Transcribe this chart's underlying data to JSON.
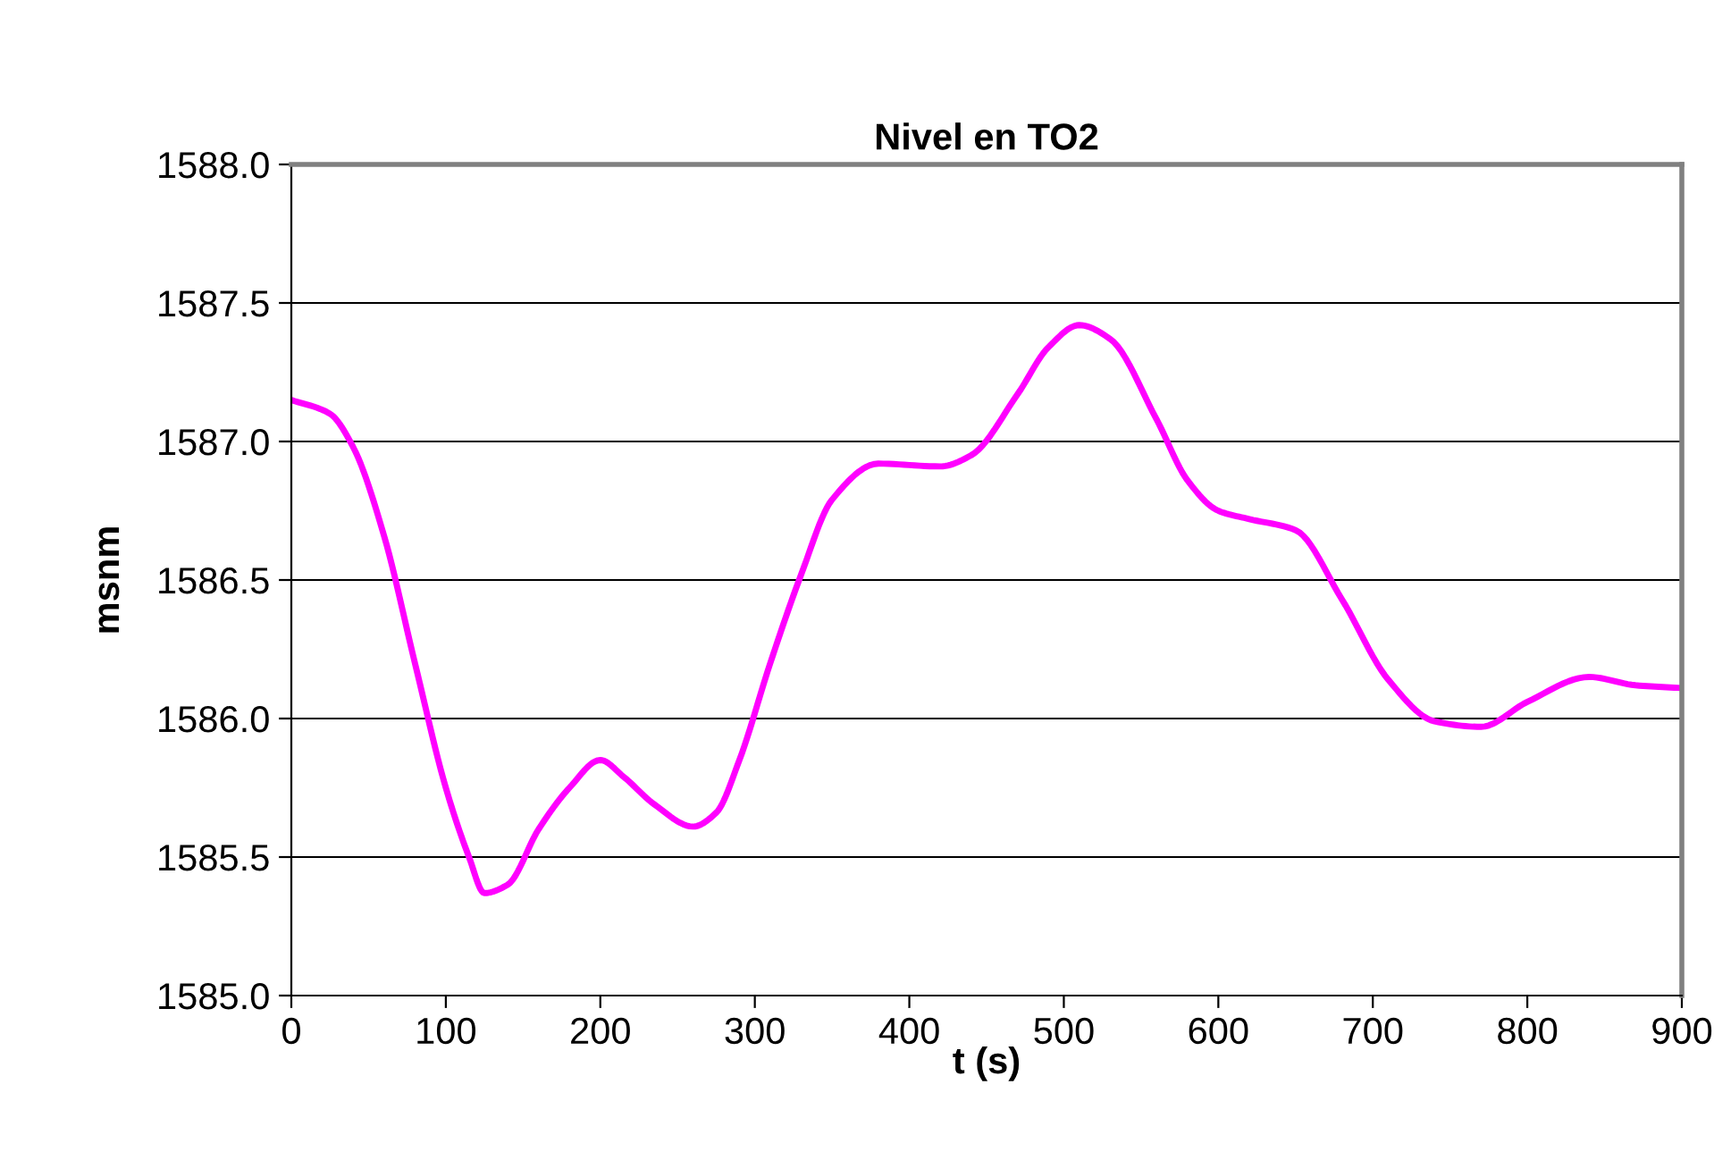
{
  "chart_data": {
    "type": "line",
    "title": "Nivel en TO2",
    "xlabel": "t (s)",
    "ylabel": "msnm",
    "x": [
      0,
      25,
      40,
      60,
      80,
      100,
      115,
      125,
      140,
      160,
      180,
      200,
      215,
      235,
      260,
      275,
      290,
      310,
      330,
      350,
      380,
      420,
      440,
      470,
      490,
      510,
      530,
      560,
      580,
      600,
      620,
      650,
      680,
      710,
      740,
      770,
      800,
      840,
      870,
      900
    ],
    "series": [
      {
        "color": "#ff00ff",
        "values": [
          1587.15,
          1587.1,
          1586.98,
          1586.66,
          1586.2,
          1585.75,
          1585.5,
          1585.37,
          1585.4,
          1585.6,
          1585.75,
          1585.85,
          1585.79,
          1585.69,
          1585.61,
          1585.66,
          1585.85,
          1586.2,
          1586.52,
          1586.79,
          1586.92,
          1586.91,
          1586.95,
          1587.17,
          1587.34,
          1587.42,
          1587.37,
          1587.08,
          1586.86,
          1586.75,
          1586.72,
          1586.68,
          1586.43,
          1586.14,
          1585.99,
          1585.97,
          1586.06,
          1586.15,
          1586.12,
          1586.11
        ]
      }
    ],
    "xlim": [
      0,
      900
    ],
    "xticks": [
      0,
      100,
      200,
      300,
      400,
      500,
      600,
      700,
      800,
      900
    ],
    "ylim": [
      1585.0,
      1588.0
    ],
    "yticks": [
      {
        "value": 1585.0,
        "label": "1585.0"
      },
      {
        "value": 1585.5,
        "label": "1585.5"
      },
      {
        "value": 1586.0,
        "label": "1586.0"
      },
      {
        "value": 1586.5,
        "label": "1586.5"
      },
      {
        "value": 1587.0,
        "label": "1587.0"
      },
      {
        "value": 1587.5,
        "label": "1587.5"
      },
      {
        "value": 1588.0,
        "label": "1588.0"
      }
    ],
    "grid": "y",
    "legend": false,
    "marker": "none",
    "line_style": "solid"
  }
}
